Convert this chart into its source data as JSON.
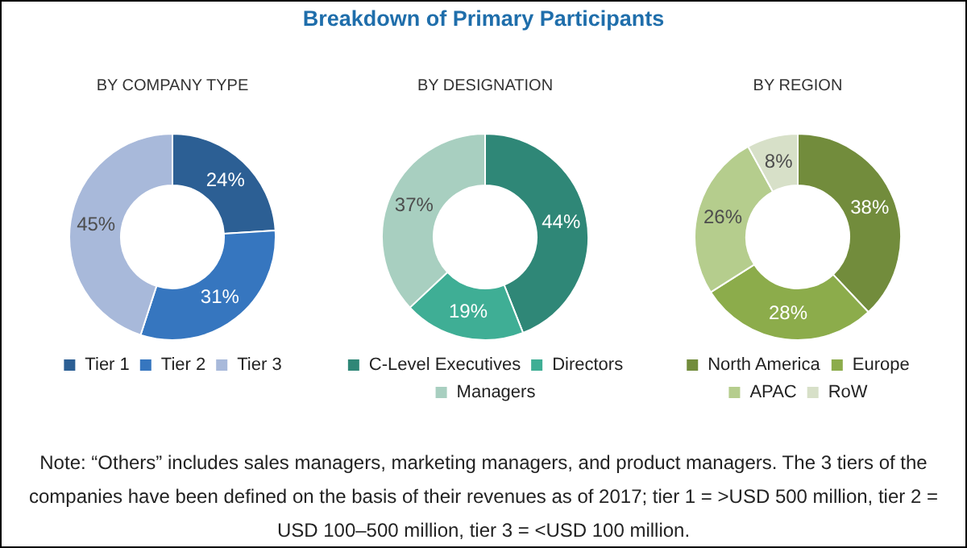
{
  "chart_data": [
    {
      "type": "donut",
      "title": "BY COMPANY TYPE",
      "categories": [
        "Tier 1",
        "Tier 2",
        "Tier 3"
      ],
      "values": [
        24,
        31,
        45
      ],
      "colors": [
        "#2c5f94",
        "#3676bf",
        "#a8b9da"
      ],
      "value_labels": [
        "24%",
        "31%",
        "45%"
      ],
      "legend": "bottom",
      "annotations": [
        "Breakdown of Primary Participants",
        "Note: “Others” includes sales managers, marketing managers, and product managers. The 3 tiers of the companies have been defined on the basis of their revenues as of 2017; tier 1 = >USD 500 million, tier 2 = USD 100–500 million, tier 3 = <USD 100 million."
      ]
    },
    {
      "type": "donut",
      "title": "BY DESIGNATION",
      "categories": [
        "C-Level Executives",
        "Directors",
        "Managers"
      ],
      "values": [
        44,
        19,
        37
      ],
      "colors": [
        "#2f8777",
        "#3fae95",
        "#a8cfc0"
      ],
      "value_labels": [
        "44%",
        "19%",
        "37%"
      ],
      "legend": "bottom"
    },
    {
      "type": "donut",
      "title": "BY REGION",
      "categories": [
        "North America",
        "Europe",
        "APAC",
        "RoW"
      ],
      "values": [
        38,
        28,
        26,
        8
      ],
      "colors": [
        "#728c3c",
        "#8cac4b",
        "#b5cd8d",
        "#d7e0c8"
      ],
      "value_labels": [
        "38%",
        "28%",
        "26%",
        "8%"
      ],
      "legend": "bottom"
    }
  ]
}
